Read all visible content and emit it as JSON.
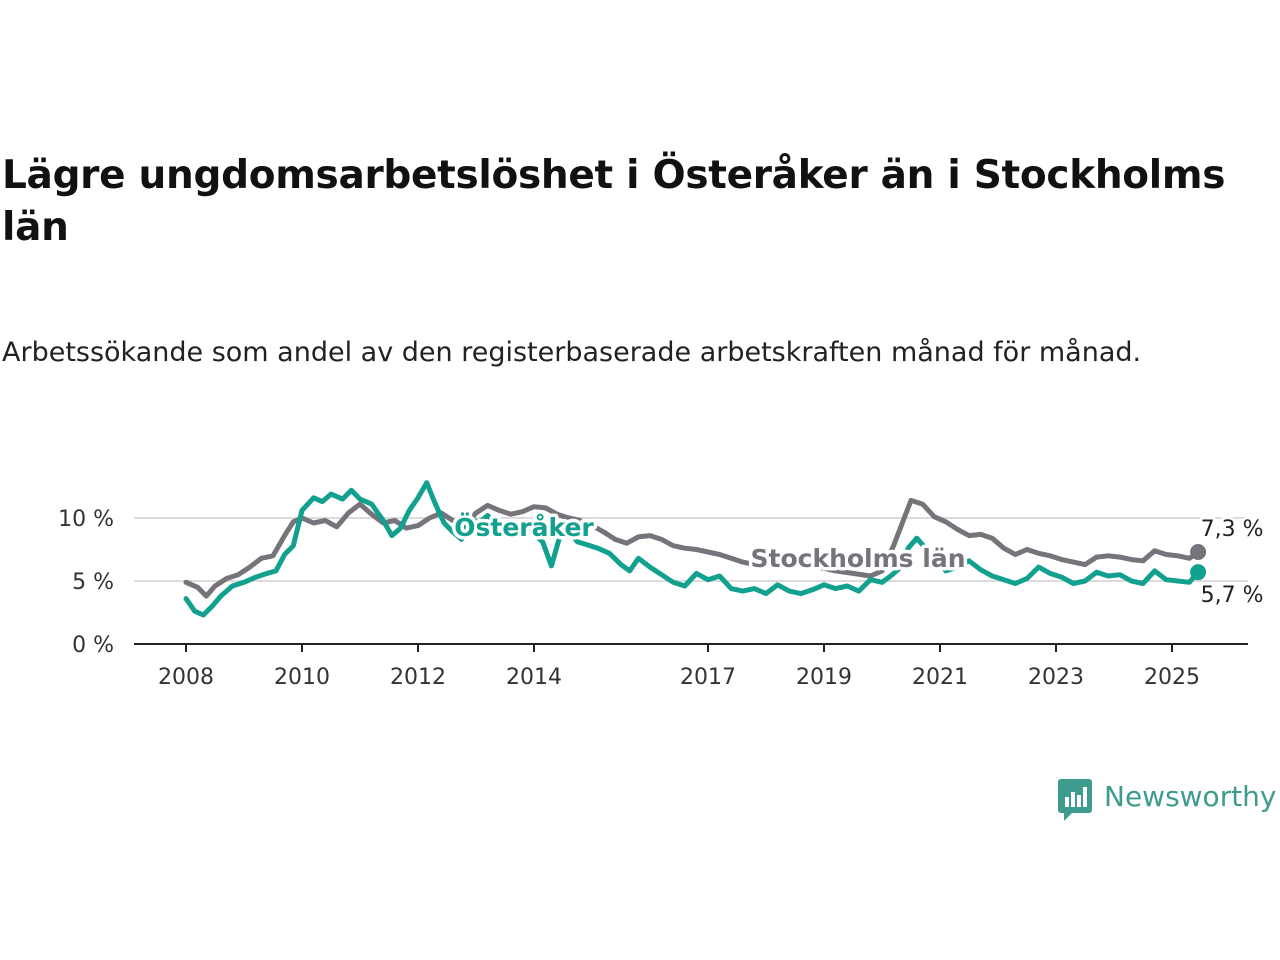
{
  "header": {
    "title": "Lägre ungdomsarbetslöshet i Österåker än i Stockholms län",
    "subtitle": "Arbetssökande som andel av den registerbaserade arbetskraften månad för månad."
  },
  "brand": {
    "name": "Newsworthy",
    "icon": "newsworthy-logo-icon",
    "color": "#3d9c8e"
  },
  "chart_data": {
    "type": "line",
    "title": "Lägre ungdomsarbetslöshet i Österåker än i Stockholms län",
    "subtitle": "Arbetssökande som andel av den registerbaserade arbetskraften månad för månad.",
    "x_ticks": [
      2008,
      2010,
      2012,
      2014,
      2017,
      2019,
      2021,
      2023,
      2025
    ],
    "x_range": [
      2007.2,
      2026.4
    ],
    "y_ticks": [
      0,
      5,
      10
    ],
    "y_tick_labels": [
      "0 %",
      "5 %",
      "10 %"
    ],
    "ylim": [
      0,
      11.5
    ],
    "grid": "horizontal",
    "legend": "inline labels",
    "series": [
      {
        "name": "Stockholms län",
        "color": "#76747a",
        "end_label": "7,3 %",
        "points": [
          [
            2008.0,
            4.9
          ],
          [
            2008.2,
            4.5
          ],
          [
            2008.35,
            3.8
          ],
          [
            2008.5,
            4.6
          ],
          [
            2008.7,
            5.2
          ],
          [
            2008.9,
            5.5
          ],
          [
            2009.1,
            6.1
          ],
          [
            2009.3,
            6.8
          ],
          [
            2009.5,
            7.0
          ],
          [
            2009.7,
            8.6
          ],
          [
            2009.85,
            9.7
          ],
          [
            2010.0,
            10.0
          ],
          [
            2010.2,
            9.6
          ],
          [
            2010.4,
            9.8
          ],
          [
            2010.6,
            9.3
          ],
          [
            2010.8,
            10.4
          ],
          [
            2011.0,
            11.1
          ],
          [
            2011.2,
            10.3
          ],
          [
            2011.4,
            9.6
          ],
          [
            2011.6,
            9.8
          ],
          [
            2011.8,
            9.2
          ],
          [
            2012.0,
            9.4
          ],
          [
            2012.2,
            10.0
          ],
          [
            2012.4,
            10.4
          ],
          [
            2012.6,
            9.8
          ],
          [
            2012.8,
            9.4
          ],
          [
            2013.0,
            10.4
          ],
          [
            2013.2,
            11.0
          ],
          [
            2013.4,
            10.6
          ],
          [
            2013.6,
            10.3
          ],
          [
            2013.8,
            10.5
          ],
          [
            2014.0,
            10.9
          ],
          [
            2014.2,
            10.8
          ],
          [
            2014.4,
            10.3
          ],
          [
            2014.6,
            10.0
          ],
          [
            2014.8,
            9.8
          ],
          [
            2015.0,
            9.4
          ],
          [
            2015.2,
            8.9
          ],
          [
            2015.4,
            8.3
          ],
          [
            2015.6,
            8.0
          ],
          [
            2015.8,
            8.5
          ],
          [
            2016.0,
            8.6
          ],
          [
            2016.2,
            8.3
          ],
          [
            2016.4,
            7.8
          ],
          [
            2016.6,
            7.6
          ],
          [
            2016.8,
            7.5
          ],
          [
            2017.0,
            7.3
          ],
          [
            2017.2,
            7.1
          ],
          [
            2017.4,
            6.8
          ],
          [
            2017.6,
            6.5
          ],
          [
            2017.8,
            6.3
          ],
          [
            2018.0,
            6.8
          ],
          [
            2018.3,
            6.6
          ],
          [
            2018.6,
            6.3
          ],
          [
            2018.9,
            6.1
          ],
          [
            2019.2,
            5.8
          ],
          [
            2019.5,
            5.6
          ],
          [
            2019.8,
            5.4
          ],
          [
            2020.0,
            5.8
          ],
          [
            2020.2,
            7.8
          ],
          [
            2020.35,
            9.6
          ],
          [
            2020.5,
            11.4
          ],
          [
            2020.7,
            11.1
          ],
          [
            2020.9,
            10.1
          ],
          [
            2021.1,
            9.7
          ],
          [
            2021.3,
            9.1
          ],
          [
            2021.5,
            8.6
          ],
          [
            2021.7,
            8.7
          ],
          [
            2021.9,
            8.4
          ],
          [
            2022.1,
            7.6
          ],
          [
            2022.3,
            7.1
          ],
          [
            2022.5,
            7.5
          ],
          [
            2022.7,
            7.2
          ],
          [
            2022.9,
            7.0
          ],
          [
            2023.1,
            6.7
          ],
          [
            2023.3,
            6.5
          ],
          [
            2023.5,
            6.3
          ],
          [
            2023.7,
            6.9
          ],
          [
            2023.9,
            7.0
          ],
          [
            2024.1,
            6.9
          ],
          [
            2024.3,
            6.7
          ],
          [
            2024.5,
            6.6
          ],
          [
            2024.7,
            7.4
          ],
          [
            2024.9,
            7.1
          ],
          [
            2025.1,
            7.0
          ],
          [
            2025.3,
            6.8
          ],
          [
            2025.45,
            7.3
          ]
        ]
      },
      {
        "name": "Österåker",
        "color": "#12a08f",
        "end_label": "5,7 %",
        "points": [
          [
            2008.0,
            3.6
          ],
          [
            2008.15,
            2.6
          ],
          [
            2008.3,
            2.3
          ],
          [
            2008.45,
            3.0
          ],
          [
            2008.6,
            3.8
          ],
          [
            2008.8,
            4.6
          ],
          [
            2009.0,
            4.9
          ],
          [
            2009.2,
            5.3
          ],
          [
            2009.4,
            5.6
          ],
          [
            2009.55,
            5.8
          ],
          [
            2009.7,
            7.1
          ],
          [
            2009.85,
            7.8
          ],
          [
            2010.0,
            10.6
          ],
          [
            2010.2,
            11.6
          ],
          [
            2010.35,
            11.3
          ],
          [
            2010.5,
            11.9
          ],
          [
            2010.7,
            11.5
          ],
          [
            2010.85,
            12.2
          ],
          [
            2011.0,
            11.5
          ],
          [
            2011.2,
            11.1
          ],
          [
            2011.4,
            9.8
          ],
          [
            2011.55,
            8.6
          ],
          [
            2011.7,
            9.2
          ],
          [
            2011.85,
            10.6
          ],
          [
            2012.0,
            11.6
          ],
          [
            2012.15,
            12.8
          ],
          [
            2012.3,
            11.1
          ],
          [
            2012.45,
            9.6
          ],
          [
            2012.6,
            8.9
          ],
          [
            2012.75,
            8.3
          ],
          [
            2012.9,
            10.0
          ],
          [
            2013.05,
            9.6
          ],
          [
            2013.2,
            10.2
          ],
          [
            2013.4,
            9.3
          ],
          [
            2013.6,
            8.8
          ],
          [
            2013.8,
            9.4
          ],
          [
            2014.0,
            8.7
          ],
          [
            2014.15,
            8.1
          ],
          [
            2014.3,
            6.2
          ],
          [
            2014.45,
            8.6
          ],
          [
            2014.6,
            9.0
          ],
          [
            2014.75,
            8.1
          ],
          [
            2014.9,
            7.9
          ],
          [
            2015.1,
            7.6
          ],
          [
            2015.3,
            7.2
          ],
          [
            2015.5,
            6.3
          ],
          [
            2015.65,
            5.8
          ],
          [
            2015.8,
            6.8
          ],
          [
            2016.0,
            6.1
          ],
          [
            2016.2,
            5.5
          ],
          [
            2016.4,
            4.9
          ],
          [
            2016.6,
            4.6
          ],
          [
            2016.8,
            5.6
          ],
          [
            2017.0,
            5.1
          ],
          [
            2017.2,
            5.4
          ],
          [
            2017.4,
            4.4
          ],
          [
            2017.6,
            4.2
          ],
          [
            2017.8,
            4.4
          ],
          [
            2018.0,
            4.0
          ],
          [
            2018.2,
            4.7
          ],
          [
            2018.4,
            4.2
          ],
          [
            2018.6,
            4.0
          ],
          [
            2018.8,
            4.3
          ],
          [
            2019.0,
            4.7
          ],
          [
            2019.2,
            4.4
          ],
          [
            2019.4,
            4.6
          ],
          [
            2019.6,
            4.2
          ],
          [
            2019.8,
            5.1
          ],
          [
            2020.0,
            4.9
          ],
          [
            2020.15,
            5.4
          ],
          [
            2020.3,
            6.0
          ],
          [
            2020.45,
            7.6
          ],
          [
            2020.6,
            8.4
          ],
          [
            2020.75,
            7.6
          ],
          [
            2020.9,
            6.9
          ],
          [
            2021.1,
            5.8
          ],
          [
            2021.3,
            6.1
          ],
          [
            2021.5,
            6.6
          ],
          [
            2021.7,
            5.9
          ],
          [
            2021.9,
            5.4
          ],
          [
            2022.1,
            5.1
          ],
          [
            2022.3,
            4.8
          ],
          [
            2022.5,
            5.2
          ],
          [
            2022.7,
            6.1
          ],
          [
            2022.9,
            5.6
          ],
          [
            2023.1,
            5.3
          ],
          [
            2023.3,
            4.8
          ],
          [
            2023.5,
            5.0
          ],
          [
            2023.7,
            5.7
          ],
          [
            2023.9,
            5.4
          ],
          [
            2024.1,
            5.5
          ],
          [
            2024.3,
            5.0
          ],
          [
            2024.5,
            4.8
          ],
          [
            2024.7,
            5.8
          ],
          [
            2024.9,
            5.1
          ],
          [
            2025.1,
            5.0
          ],
          [
            2025.3,
            4.9
          ],
          [
            2025.45,
            5.7
          ]
        ]
      }
    ]
  }
}
